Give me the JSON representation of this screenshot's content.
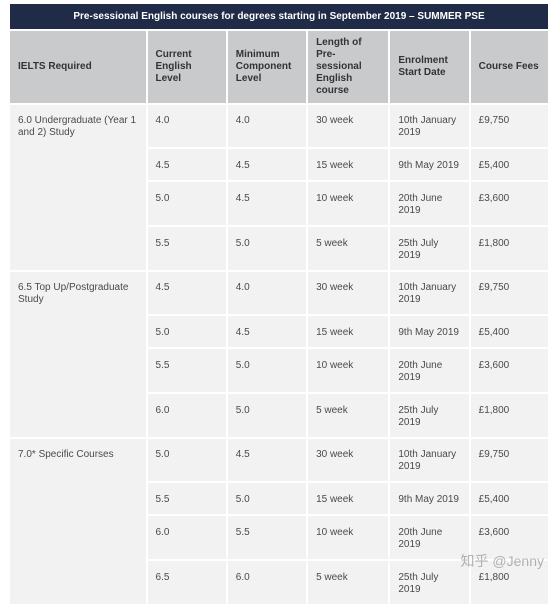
{
  "title": "Pre-sessional English courses for degrees starting in September 2019 – SUMMER PSE",
  "headers": [
    "IELTS Required",
    "Current English Level",
    "Minimum Component Level",
    "Length of Pre-sessional English course",
    "Enrolment Start Date",
    "Course Fees"
  ],
  "groups": [
    {
      "ielts": "6.0 Undergraduate (Year 1 and 2) Study",
      "rows": [
        [
          "4.0",
          "4.0",
          "30 week",
          "10th January 2019",
          "£9,750"
        ],
        [
          "4.5",
          "4.5",
          "15 week",
          "9th May 2019",
          "£5,400"
        ],
        [
          "5.0",
          "4.5",
          "10 week",
          "20th June 2019",
          "£3,600"
        ],
        [
          "5.5",
          "5.0",
          "5 week",
          "25th July 2019",
          "£1,800"
        ]
      ]
    },
    {
      "ielts": "6.5 Top Up/Postgraduate Study",
      "rows": [
        [
          "4.5",
          "4.0",
          "30 week",
          "10th January 2019",
          "£9,750"
        ],
        [
          "5.0",
          "4.5",
          "15 week",
          "9th May 2019",
          "£5,400"
        ],
        [
          "5.5",
          "5.0",
          "10 week",
          "20th June 2019",
          "£3,600"
        ],
        [
          "6.0",
          "5.0",
          "5 week",
          "25th July 2019",
          "£1,800"
        ]
      ]
    },
    {
      "ielts": "7.0* Specific Courses",
      "rows": [
        [
          "5.0",
          "4.5",
          "30 week",
          "10th January 2019",
          "£9,750"
        ],
        [
          "5.5",
          "5.0",
          "15 week",
          "9th May 2019",
          "£5,400"
        ],
        [
          "6.0",
          "5.5",
          "10 week",
          "20th June 2019",
          "£3,600"
        ],
        [
          "6.5",
          "6.0",
          "5 week",
          "25th July 2019",
          "£1,800"
        ]
      ]
    }
  ],
  "watermark": "知乎 @Jenny"
}
